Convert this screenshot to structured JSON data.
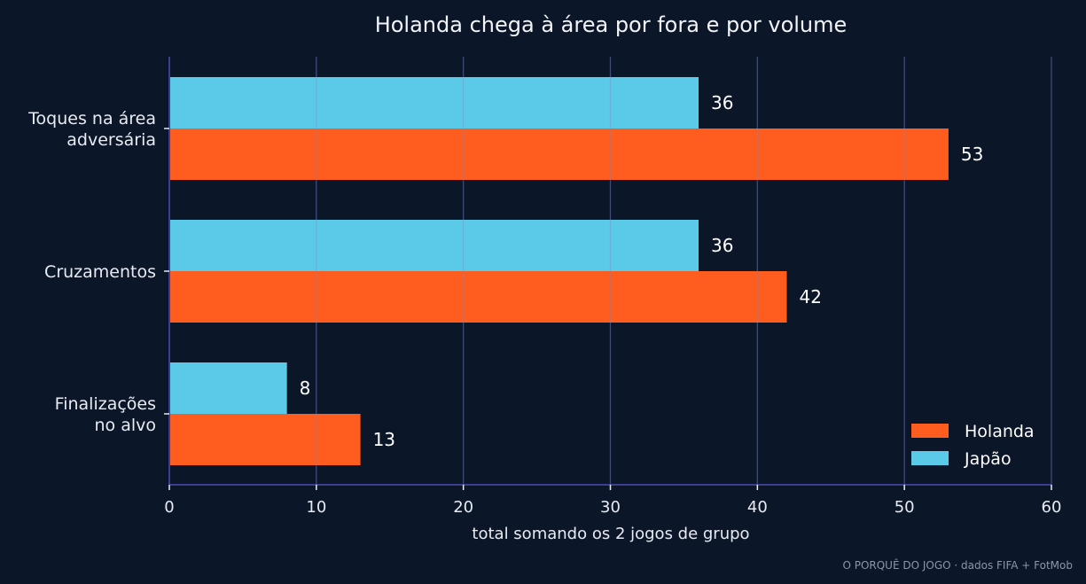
{
  "chart_data": {
    "type": "bar",
    "orientation": "horizontal",
    "title": "Holanda chega à área por fora e por volume",
    "categories": [
      "Toques na área\nadversária",
      "Cruzamentos",
      "Finalizações\nno alvo"
    ],
    "series": [
      {
        "name": "Japão",
        "color": "#5bc9e8",
        "values": [
          36,
          36,
          8
        ]
      },
      {
        "name": "Holanda",
        "color": "#ff5c20",
        "values": [
          53,
          42,
          13
        ]
      }
    ],
    "xlabel": "total somando os 2 jogos de grupo",
    "ylabel": "",
    "xlim": [
      0,
      60
    ],
    "xticks": [
      0,
      10,
      20,
      30,
      40,
      50,
      60
    ],
    "grid": "vertical",
    "legend": {
      "position": "bottom-right",
      "order": [
        "Holanda",
        "Japão"
      ]
    },
    "credit": "O PORQUÊ DO JOGO · dados FIFA + FotMob"
  },
  "colors": {
    "background": "#0b1628",
    "axis": "#3a3f8f",
    "grid": "#1f2a55",
    "text": "#e8ecf2"
  }
}
